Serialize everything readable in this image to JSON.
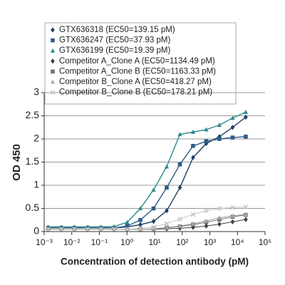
{
  "chart_data": {
    "type": "scatter",
    "x_label": "Concentration of detection antibody (pM)",
    "y_label": "OD 450",
    "xscale": "log",
    "xlim": [
      0.001,
      100000
    ],
    "xticks": [
      {
        "value": 0.001,
        "label": "10⁻³"
      },
      {
        "value": 0.01,
        "label": "10⁻²"
      },
      {
        "value": 0.1,
        "label": "10⁻¹"
      },
      {
        "value": 1,
        "label": "10⁰"
      },
      {
        "value": 10,
        "label": "10¹"
      },
      {
        "value": 100,
        "label": "10²"
      },
      {
        "value": 1000,
        "label": "10³"
      },
      {
        "value": 10000,
        "label": "10⁴"
      },
      {
        "value": 100000,
        "label": "10⁵"
      }
    ],
    "ylim": [
      0,
      3
    ],
    "yticks": [
      0,
      0.5,
      1,
      1.5,
      2,
      2.5,
      3
    ],
    "grid": true,
    "legend": "upper-left",
    "x": [
      0.001394,
      0.004181,
      0.01254,
      0.03763,
      0.1129,
      0.3387,
      1.016,
      3.048,
      9.145,
      27.43,
      82.3,
      246.9,
      740.7,
      2222,
      6667,
      20000
    ],
    "series": [
      {
        "name": "GTX636318 (EC50=139.15 pM)",
        "color": "#1f3f66",
        "marker": "diamond",
        "values": [
          0.08,
          0.08,
          0.08,
          0.08,
          0.08,
          0.08,
          0.1,
          0.15,
          0.22,
          0.45,
          0.95,
          1.6,
          1.9,
          2.05,
          2.25,
          2.47
        ]
      },
      {
        "name": "GTX636247 (EC50=37.93 pM)",
        "color": "#2e5b8a",
        "marker": "square",
        "values": [
          0.08,
          0.08,
          0.08,
          0.08,
          0.08,
          0.08,
          0.12,
          0.25,
          0.5,
          0.95,
          1.45,
          1.85,
          1.95,
          2.0,
          2.03,
          2.05
        ]
      },
      {
        "name": "GTX636199 (EC50=19.39 pM)",
        "color": "#2a8a8a",
        "marker": "triangle",
        "values": [
          0.1,
          0.1,
          0.1,
          0.1,
          0.1,
          0.11,
          0.2,
          0.5,
          0.9,
          1.4,
          2.1,
          2.15,
          2.2,
          2.3,
          2.45,
          2.58
        ]
      },
      {
        "name": "Competitor A_Clone A (EC50=1134.49 pM)",
        "color": "#404040",
        "marker": "diamond",
        "values": [
          0.05,
          0.05,
          0.05,
          0.05,
          0.05,
          0.05,
          0.05,
          0.05,
          0.05,
          0.06,
          0.07,
          0.09,
          0.12,
          0.16,
          0.21,
          0.26
        ]
      },
      {
        "name": "Competitor A_Clone B (EC50=1163.33 pM)",
        "color": "#707070",
        "marker": "square",
        "values": [
          0.05,
          0.05,
          0.05,
          0.05,
          0.05,
          0.05,
          0.05,
          0.05,
          0.06,
          0.08,
          0.11,
          0.15,
          0.2,
          0.26,
          0.32,
          0.36
        ]
      },
      {
        "name": "Competitor B_Clone A (EC50=418.27 pM)",
        "color": "#a8a8a8",
        "marker": "triangle",
        "values": [
          0.05,
          0.05,
          0.05,
          0.05,
          0.05,
          0.05,
          0.05,
          0.05,
          0.06,
          0.09,
          0.12,
          0.17,
          0.23,
          0.3,
          0.34,
          0.37
        ]
      },
      {
        "name": "Competitor B_Clone B (EC50=178.21 pM)",
        "color": "#c8c8c8",
        "marker": "x",
        "values": [
          0.05,
          0.05,
          0.05,
          0.05,
          0.05,
          0.05,
          0.05,
          0.07,
          0.1,
          0.17,
          0.27,
          0.37,
          0.45,
          0.5,
          0.52,
          0.53
        ]
      }
    ]
  }
}
